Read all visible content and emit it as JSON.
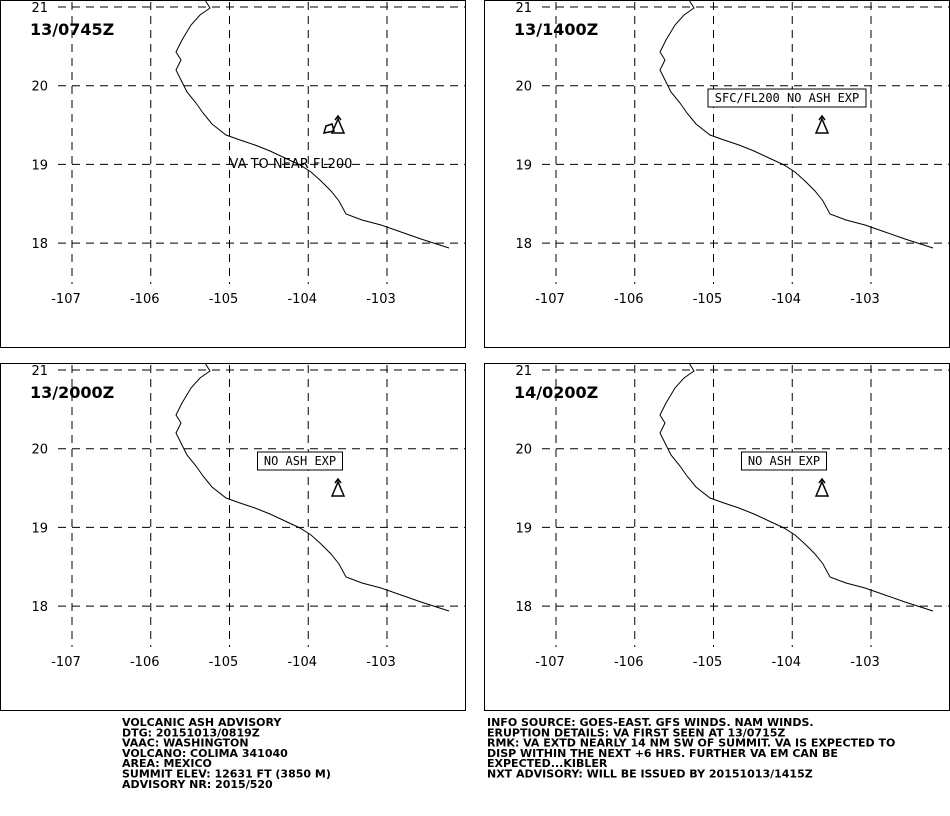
{
  "panels": [
    {
      "time": "13/0745Z",
      "annotation": "VA TO NEAR FL200",
      "boxed": false
    },
    {
      "time": "13/1400Z",
      "annotation": "SFC/FL200 NO ASH EXP",
      "boxed": true
    },
    {
      "time": "13/2000Z",
      "annotation": "NO ASH EXP",
      "boxed": true
    },
    {
      "time": "14/0200Z",
      "annotation": "NO ASH EXP",
      "boxed": true
    }
  ],
  "lon_ticks": [
    -107,
    -106,
    -105,
    -104,
    -103
  ],
  "lat_ticks": [
    21,
    20,
    19,
    18
  ],
  "advisory_left": [
    "VOLCANIC ASH ADVISORY",
    "DTG: 20151013/0819Z",
    "VAAC: WASHINGTON",
    "VOLCANO: COLIMA 341040",
    "AREA: MEXICO",
    "SUMMIT ELEV: 12631 FT (3850 M)",
    "ADVISORY NR: 2015/520"
  ],
  "advisory_right": [
    "INFO SOURCE: GOES-EAST. GFS WINDS. NAM WINDS.",
    "ERUPTION DETAILS: VA FIRST SEEN AT 13/0715Z",
    "RMK: VA EXTD NEARLY 14 NM SW OF SUMMIT. VA IS EXPECTED TO",
    "DISP WITHIN THE NEXT +6 HRS. FURTHER VA EM CAN BE",
    "EXPECTED...KIBLER",
    "NXT ADVISORY: WILL BE ISSUED BY 20151013/1415Z"
  ]
}
